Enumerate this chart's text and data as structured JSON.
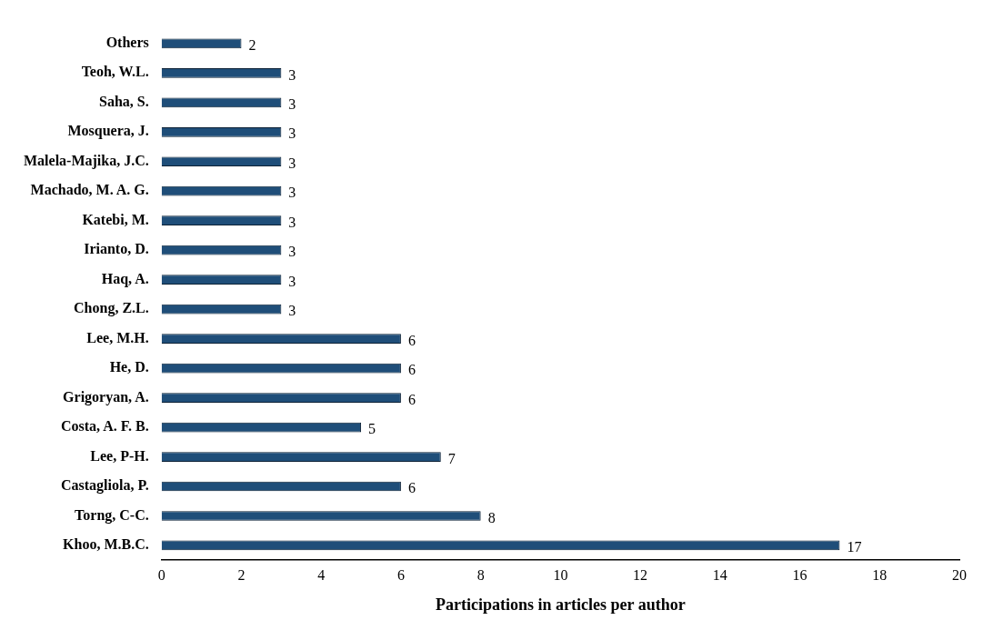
{
  "chart_data": {
    "type": "bar",
    "orientation": "horizontal",
    "xlabel": "Participations in articles per author",
    "categories": [
      "Others",
      "Teoh, W.L.",
      "Saha, S.",
      "Mosquera, J.",
      "Malela-Majika, J.C.",
      "Machado, M. A. G.",
      "Katebi, M.",
      "Irianto, D.",
      "Haq, A.",
      "Chong, Z.L.",
      "Lee, M.H.",
      "He, D.",
      "Grigoryan, A.",
      "Costa, A. F. B.",
      "Lee, P-H.",
      "Castagliola, P.",
      "Torng, C-C.",
      "Khoo, M.B.C."
    ],
    "values": [
      2,
      3,
      3,
      3,
      3,
      3,
      3,
      3,
      3,
      3,
      6,
      6,
      6,
      5,
      7,
      6,
      8,
      17
    ],
    "color": "#1f4e79",
    "xlim": [
      0,
      20
    ],
    "xticks": [
      0,
      2,
      4,
      6,
      8,
      10,
      12,
      14,
      16,
      18,
      20
    ],
    "grid": false,
    "legend": false,
    "data_labels": true
  }
}
